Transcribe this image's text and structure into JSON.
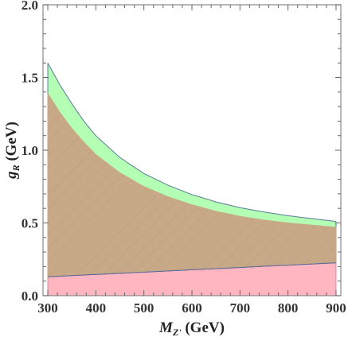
{
  "chart_data": {
    "type": "area",
    "xlabel": {
      "main": "M",
      "sub": "Z'",
      "unit": " (GeV)"
    },
    "ylabel": {
      "main": "g",
      "sub": "R",
      "unit": " (GeV)"
    },
    "xlim": [
      290,
      910
    ],
    "ylim": [
      0,
      2.0
    ],
    "xticks": [
      {
        "value": 300,
        "label": "300"
      },
      {
        "value": 400,
        "label": "400"
      },
      {
        "value": 500,
        "label": "500"
      },
      {
        "value": 600,
        "label": "600"
      },
      {
        "value": 700,
        "label": "700"
      },
      {
        "value": 800,
        "label": "800"
      },
      {
        "value": 900,
        "label": "900"
      }
    ],
    "yticks": [
      {
        "value": 0.0,
        "label": "0.0"
      },
      {
        "value": 0.5,
        "label": "0.5"
      },
      {
        "value": 1.0,
        "label": "1.0"
      },
      {
        "value": 1.5,
        "label": "1.5"
      },
      {
        "value": 2.0,
        "label": "2.0"
      }
    ],
    "x": [
      300,
      325,
      350,
      375,
      400,
      450,
      500,
      550,
      600,
      650,
      700,
      750,
      800,
      850,
      900
    ],
    "series": [
      {
        "fill": "#ffb6c1",
        "stroke": "#d88a99",
        "lower": [
          0.0,
          0.0,
          0.0,
          0.0,
          0.0,
          0.0,
          0.0,
          0.0,
          0.0,
          0.0,
          0.0,
          0.0,
          0.0,
          0.0,
          0.0
        ],
        "upper": [
          0.13,
          0.134,
          0.138,
          0.142,
          0.146,
          0.154,
          0.162,
          0.17,
          0.178,
          0.186,
          0.194,
          0.202,
          0.21,
          0.218,
          0.226
        ]
      },
      {
        "fill": "#b3ffb3",
        "stroke": "#5a7a99",
        "lower": [
          0.13,
          0.134,
          0.138,
          0.142,
          0.146,
          0.154,
          0.162,
          0.17,
          0.178,
          0.186,
          0.194,
          0.202,
          0.21,
          0.218,
          0.226
        ],
        "upper": [
          1.6,
          1.45,
          1.32,
          1.2,
          1.1,
          0.95,
          0.84,
          0.76,
          0.695,
          0.645,
          0.605,
          0.575,
          0.55,
          0.53,
          0.51
        ]
      },
      {
        "fill": "#c8a987",
        "stroke": "#c8a987",
        "lower": [
          0.13,
          0.134,
          0.138,
          0.142,
          0.146,
          0.154,
          0.162,
          0.17,
          0.178,
          0.186,
          0.194,
          0.202,
          0.21,
          0.218,
          0.226
        ],
        "upper": [
          1.39,
          1.26,
          1.15,
          1.055,
          0.97,
          0.845,
          0.75,
          0.68,
          0.625,
          0.58,
          0.545,
          0.52,
          0.5,
          0.485,
          0.47
        ]
      }
    ],
    "colors": {
      "frame": "#888888",
      "tick": "#666666",
      "hatch": "#a98c6c"
    }
  }
}
